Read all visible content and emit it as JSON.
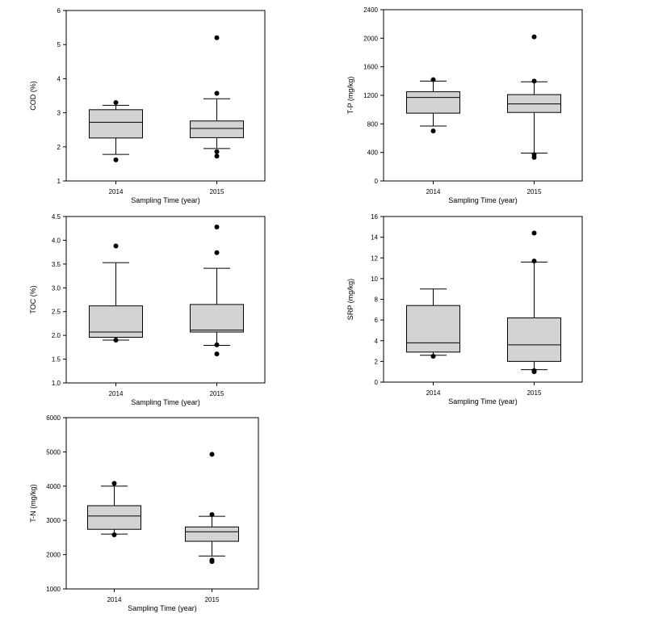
{
  "chart_data": [
    {
      "type": "box",
      "ylabel": "COD (%)",
      "xlabel": "Sampling Time (year)",
      "ylim": [
        1,
        6
      ],
      "yticks": [
        "1",
        "2",
        "3",
        "4",
        "5",
        "6"
      ],
      "categories": [
        "2014",
        "2015"
      ],
      "boxes": [
        {
          "category": "2014",
          "whisker_low": 1.78,
          "q1": 2.26,
          "median": 2.72,
          "q3": 3.09,
          "whisker_high": 3.22,
          "outliers": [
            3.3,
            1.62
          ]
        },
        {
          "category": "2015",
          "whisker_low": 1.95,
          "q1": 2.27,
          "median": 2.54,
          "q3": 2.76,
          "whisker_high": 3.41,
          "outliers": [
            5.2,
            3.57,
            1.86,
            1.73
          ]
        }
      ]
    },
    {
      "type": "box",
      "ylabel": "T-P (mg/kg)",
      "xlabel": "Sampling Time (year)",
      "ylim": [
        0,
        2400
      ],
      "yticks": [
        "0",
        "400",
        "800",
        "1200",
        "1600",
        "2000",
        "2400"
      ],
      "categories": [
        "2014",
        "2015"
      ],
      "boxes": [
        {
          "category": "2014",
          "whisker_low": 770,
          "q1": 950,
          "median": 1170,
          "q3": 1250,
          "whisker_high": 1400,
          "outliers": [
            1420,
            700
          ]
        },
        {
          "category": "2015",
          "whisker_low": 390,
          "q1": 960,
          "median": 1080,
          "q3": 1210,
          "whisker_high": 1390,
          "outliers": [
            2020,
            1400,
            370,
            330
          ]
        }
      ]
    },
    {
      "type": "box",
      "ylabel": "TOC (%)",
      "xlabel": "Sampling Time (year)",
      "ylim": [
        1.0,
        4.5
      ],
      "yticks": [
        "1.0",
        "1.5",
        "2.0",
        "2.5",
        "3.0",
        "3.5",
        "4.0",
        "4.5"
      ],
      "categories": [
        "2014",
        "2015"
      ],
      "boxes": [
        {
          "category": "2014",
          "whisker_low": 1.9,
          "q1": 1.96,
          "median": 2.07,
          "q3": 2.62,
          "whisker_high": 3.53,
          "outliers": [
            3.88,
            1.9
          ]
        },
        {
          "category": "2015",
          "whisker_low": 1.79,
          "q1": 2.07,
          "median": 2.11,
          "q3": 2.65,
          "whisker_high": 3.41,
          "outliers": [
            4.28,
            3.74,
            1.8,
            1.61
          ]
        }
      ]
    },
    {
      "type": "box",
      "ylabel": "SRP (mg/kg)",
      "xlabel": "Sampling Time (year)",
      "ylim": [
        0,
        16
      ],
      "yticks": [
        "0",
        "2",
        "4",
        "6",
        "8",
        "10",
        "12",
        "14",
        "16"
      ],
      "categories": [
        "2014",
        "2015"
      ],
      "boxes": [
        {
          "category": "2014",
          "whisker_low": 2.6,
          "q1": 2.9,
          "median": 3.8,
          "q3": 7.4,
          "whisker_high": 9.0,
          "outliers": [
            2.5
          ]
        },
        {
          "category": "2015",
          "whisker_low": 1.2,
          "q1": 2.0,
          "median": 3.6,
          "q3": 6.2,
          "whisker_high": 11.6,
          "outliers": [
            14.4,
            11.7,
            1.1,
            1.0
          ]
        }
      ]
    },
    {
      "type": "box",
      "ylabel": "T-N (mg/kg)",
      "xlabel": "Sampling Time (year)",
      "ylim": [
        1000,
        6000
      ],
      "yticks": [
        "1000",
        "2000",
        "3000",
        "4000",
        "5000",
        "6000"
      ],
      "categories": [
        "2014",
        "2015"
      ],
      "boxes": [
        {
          "category": "2014",
          "whisker_low": 2600,
          "q1": 2740,
          "median": 3130,
          "q3": 3430,
          "whisker_high": 4000,
          "outliers": [
            4080,
            2580
          ]
        },
        {
          "category": "2015",
          "whisker_low": 1960,
          "q1": 2390,
          "median": 2670,
          "q3": 2810,
          "whisker_high": 3120,
          "outliers": [
            4930,
            3170,
            1840,
            1800
          ]
        }
      ]
    }
  ]
}
